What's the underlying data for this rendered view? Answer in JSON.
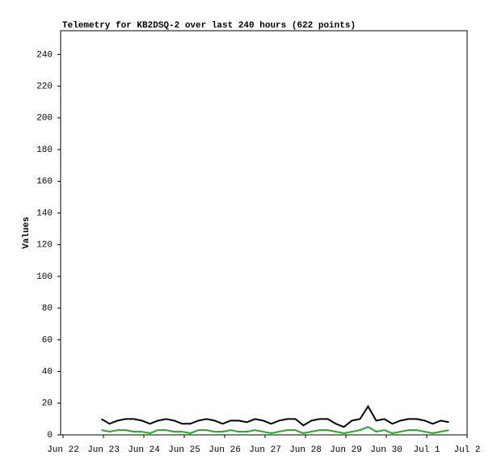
{
  "chart_data": {
    "type": "line",
    "title": "Telemetry for KB2DSQ-2 over last 240 hours (622 points)",
    "y_label": "Values",
    "x": [
      0.95,
      1.15,
      1.35,
      1.55,
      1.75,
      1.95,
      2.15,
      2.35,
      2.55,
      2.75,
      2.95,
      3.15,
      3.35,
      3.55,
      3.75,
      3.95,
      4.15,
      4.35,
      4.55,
      4.75,
      4.95,
      5.15,
      5.35,
      5.55,
      5.75,
      5.95,
      6.15,
      6.35,
      6.55,
      6.75,
      6.95,
      7.15,
      7.35,
      7.55,
      7.75,
      7.95,
      8.15,
      8.35,
      8.55,
      8.75,
      8.95,
      9.15,
      9.35,
      9.55
    ],
    "series": [
      {
        "color": "#000000",
        "values": [
          10,
          7,
          9,
          10,
          10,
          9,
          7,
          9,
          10,
          9,
          7,
          7,
          9,
          10,
          9,
          7,
          9,
          9,
          8,
          10,
          9,
          7,
          9,
          10,
          10,
          6,
          9,
          10,
          10,
          7,
          5,
          9,
          10,
          18,
          9,
          10,
          7,
          9,
          10,
          10,
          9,
          7,
          9,
          8
        ]
      },
      {
        "color": "#22aa22",
        "values": [
          3,
          2,
          3,
          3,
          2,
          2,
          1,
          3,
          3,
          2,
          2,
          1,
          3,
          3,
          2,
          2,
          3,
          2,
          2,
          3,
          2,
          1,
          2,
          3,
          3,
          1,
          2,
          3,
          3,
          2,
          1,
          2,
          3,
          5,
          2,
          3,
          1,
          2,
          3,
          3,
          2,
          1,
          2,
          3
        ]
      }
    ],
    "xlim": [
      -0.06,
      10
    ],
    "xticks": [
      {
        "value": 0,
        "label": "Jun 22"
      },
      {
        "value": 1,
        "label": "Jun 23"
      },
      {
        "value": 2,
        "label": "Jun 24"
      },
      {
        "value": 3,
        "label": "Jun 25"
      },
      {
        "value": 4,
        "label": "Jun 26"
      },
      {
        "value": 5,
        "label": "Jun 27"
      },
      {
        "value": 6,
        "label": "Jun 28"
      },
      {
        "value": 7,
        "label": "Jun 29"
      },
      {
        "value": 8,
        "label": "Jun 30"
      },
      {
        "value": 9,
        "label": "Jul 1"
      },
      {
        "value": 10,
        "label": "Jul 2"
      }
    ],
    "ylim": [
      0,
      255
    ],
    "yticks": [
      0,
      20,
      40,
      60,
      80,
      100,
      120,
      140,
      160,
      180,
      200,
      220,
      240
    ]
  }
}
